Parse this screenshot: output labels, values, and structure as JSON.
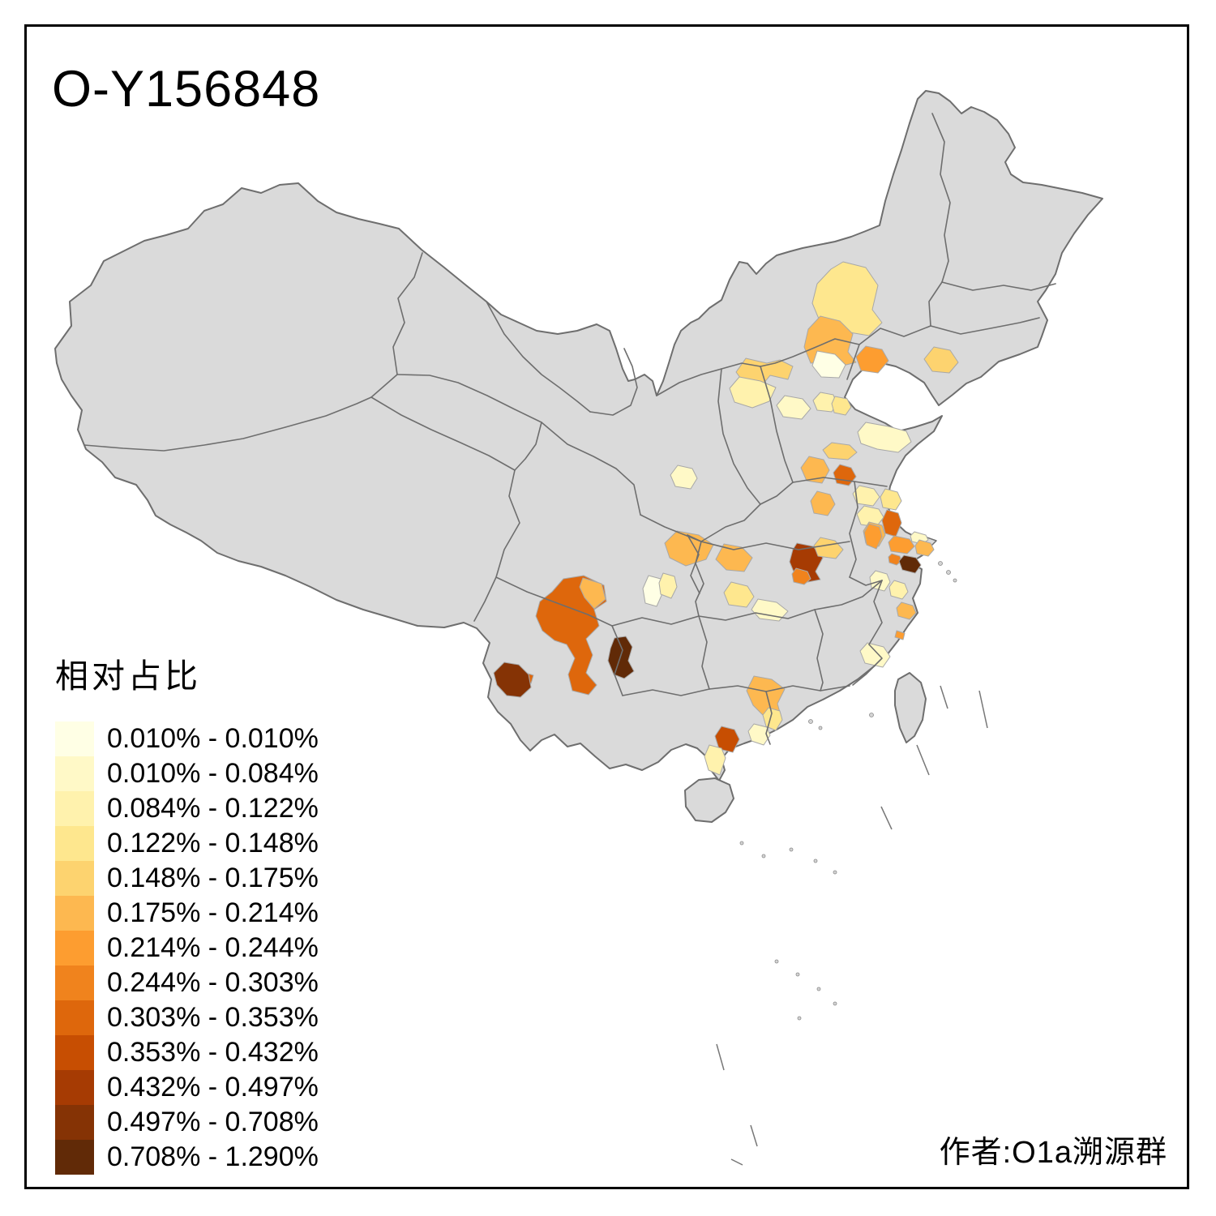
{
  "title": "O-Y156848",
  "author_caption": "作者:O1a溯源群",
  "legend": {
    "title": "相对占比",
    "classes": [
      {
        "label": "0.010% - 0.010%",
        "color": "#FFFFE5"
      },
      {
        "label": "0.010% - 0.084%",
        "color": "#FFF9C7"
      },
      {
        "label": "0.084% - 0.122%",
        "color": "#FFF2AD"
      },
      {
        "label": "0.122% - 0.148%",
        "color": "#FEE78E"
      },
      {
        "label": "0.148% - 0.175%",
        "color": "#FDD36F"
      },
      {
        "label": "0.175% - 0.214%",
        "color": "#FDB850"
      },
      {
        "label": "0.214% - 0.244%",
        "color": "#FD9D30"
      },
      {
        "label": "0.244% - 0.303%",
        "color": "#F0831D"
      },
      {
        "label": "0.303% - 0.353%",
        "color": "#DE670C"
      },
      {
        "label": "0.353% - 0.432%",
        "color": "#C74E02"
      },
      {
        "label": "0.432% - 0.497%",
        "color": "#A63B03"
      },
      {
        "label": "0.497% - 0.708%",
        "color": "#853305"
      },
      {
        "label": "0.708% - 1.290%",
        "color": "#612A07"
      }
    ]
  },
  "map": {
    "base_fill": "#DADADA",
    "boundary_color": "#6E6E6E",
    "region_edge_color": "#A8A8A8",
    "sea_color": "#FFFFFF",
    "frame_color": "#000000"
  },
  "chart_data": {
    "type": "heatmap",
    "subtype": "choropleth",
    "title": "O-Y156848",
    "legend_title": "相对占比",
    "geography": "China, prefecture-level divisions",
    "legend_position": "bottom-left",
    "default_region_fill": "#DADADA",
    "value_min": "0.010%",
    "value_max": "1.290%",
    "bins": [
      {
        "range": "0.010% - 0.010%",
        "color": "#FFFFE5"
      },
      {
        "range": "0.010% - 0.084%",
        "color": "#FFF9C7"
      },
      {
        "range": "0.084% - 0.122%",
        "color": "#FFF2AD"
      },
      {
        "range": "0.122% - 0.148%",
        "color": "#FEE78E"
      },
      {
        "range": "0.148% - 0.175%",
        "color": "#FDD36F"
      },
      {
        "range": "0.175% - 0.214%",
        "color": "#FDB850"
      },
      {
        "range": "0.214% - 0.244%",
        "color": "#FD9D30"
      },
      {
        "range": "0.244% - 0.303%",
        "color": "#F0831D"
      },
      {
        "range": "0.303% - 0.353%",
        "color": "#DE670C"
      },
      {
        "range": "0.353% - 0.432%",
        "color": "#C74E02"
      },
      {
        "range": "0.432% - 0.497%",
        "color": "#A63B03"
      },
      {
        "range": "0.497% - 0.708%",
        "color": "#853305"
      },
      {
        "range": "0.708% - 1.290%",
        "color": "#612A07"
      }
    ],
    "regions": {
      "r01": 4,
      "r02": 6,
      "r03": 7,
      "r04": 5,
      "r05": 1,
      "r06": 5,
      "r07": 3,
      "r08": 2,
      "r09": 3,
      "r10": 4,
      "r11": 2,
      "r12": 5,
      "r13": 6,
      "r14": 9,
      "r15": 6,
      "r16": 3,
      "r17": 6,
      "r18": 2,
      "r19": 6,
      "r20": 6,
      "r21": 1,
      "r22": 3,
      "r23": 4,
      "r24": 2,
      "r25": 9,
      "r26": 6,
      "r27": 9,
      "r28": 12,
      "r29": 13,
      "r30": 11,
      "r31": 8,
      "r32": 5,
      "r33": 3,
      "r34": 4,
      "r35": 9,
      "r36": 7,
      "r37": 7,
      "r38": 2,
      "r39": 6,
      "r40": 8,
      "r41": 13,
      "r42": 2,
      "r43": 3,
      "r44": 6,
      "r45": 2,
      "r46": 7,
      "r47": 6,
      "r48": 4,
      "r49": 2,
      "r50": 10,
      "r51": 3
    }
  }
}
